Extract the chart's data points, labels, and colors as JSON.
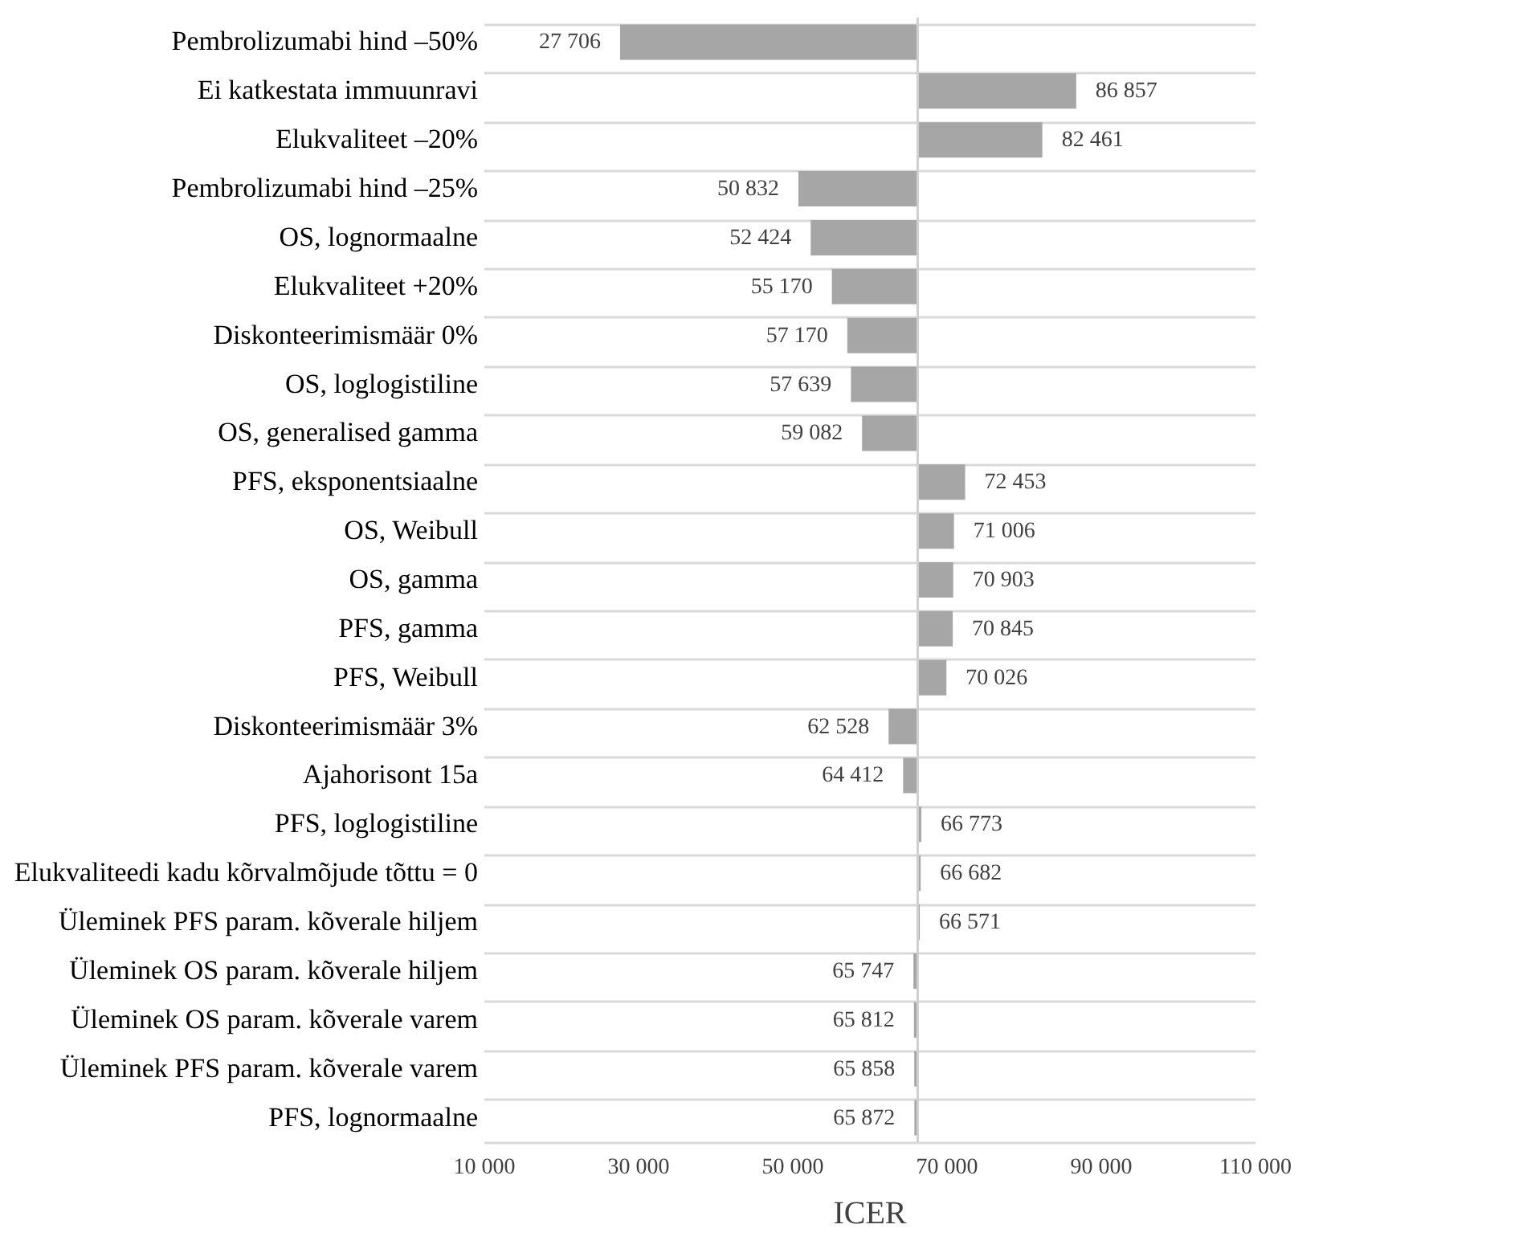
{
  "chart_data": {
    "type": "bar",
    "orientation": "horizontal",
    "xlabel": "ICER",
    "categories": [
      "Pembrolizumabi hind –50%",
      "Ei katkestata immuunravi",
      "Elukvaliteet  –20%",
      "Pembrolizumabi hind –25%",
      "OS, lognormaalne",
      "Elukvaliteet +20%",
      "Diskonteerimismäär 0%",
      "OS, loglogistiline",
      "OS, generalised gamma",
      "PFS, eksponentsiaalne",
      "OS, Weibull",
      "OS, gamma",
      "PFS, gamma",
      "PFS, Weibull",
      "Diskonteerimismäär 3%",
      "Ajahorisont 15a",
      "PFS, loglogistiline",
      "Elukvaliteedi kadu kõrvalmõjude tõttu = 0",
      "Üleminek PFS param. kõverale hiljem",
      "Üleminek OS param. kõverale hiljem",
      "Üleminek OS param. kõverale varem",
      "Üleminek PFS param. kõverale varem",
      "PFS, lognormaalne"
    ],
    "base": [
      66300,
      66300,
      66300,
      66300,
      66300,
      66300,
      66300,
      66300,
      66300,
      66300,
      66300,
      66300,
      66300,
      66300,
      66300,
      66300,
      66300,
      66300,
      66300,
      66300,
      66300,
      66300,
      66300
    ],
    "values": [
      -38594,
      20557,
      16161,
      -15468,
      -13876,
      -11130,
      -9130,
      -8661,
      -7218,
      6153,
      4706,
      4603,
      4545,
      3726,
      -3772,
      -1888,
      473,
      382,
      271,
      -553,
      -488,
      -442,
      -428
    ],
    "value_labels": [
      "27 706",
      "86 857",
      "82 461",
      "50 832",
      "52 424",
      "55 170",
      "57 170",
      "57 639",
      "59 082",
      "72 453",
      "71 006",
      "70 903",
      "70 845",
      "70 026",
      "62 528",
      "64 412",
      "66 773",
      "66 682",
      "66 571",
      "65 747",
      "65 812",
      "65 858",
      "65 872"
    ],
    "color": "#a6a6a6",
    "xlim": [
      10000,
      110000
    ],
    "xticks": [
      {
        "value": 10000,
        "label": "10 000"
      },
      {
        "value": 30000,
        "label": "30 000"
      },
      {
        "value": 50000,
        "label": "50 000"
      },
      {
        "value": 70000,
        "label": "70 000"
      },
      {
        "value": 90000,
        "label": "90 000"
      },
      {
        "value": 110000,
        "label": "110 000"
      }
    ],
    "ref_lines": [
      {
        "axis": "x",
        "value": 66300,
        "color": "#d0d0d0"
      }
    ],
    "grid": "y"
  }
}
